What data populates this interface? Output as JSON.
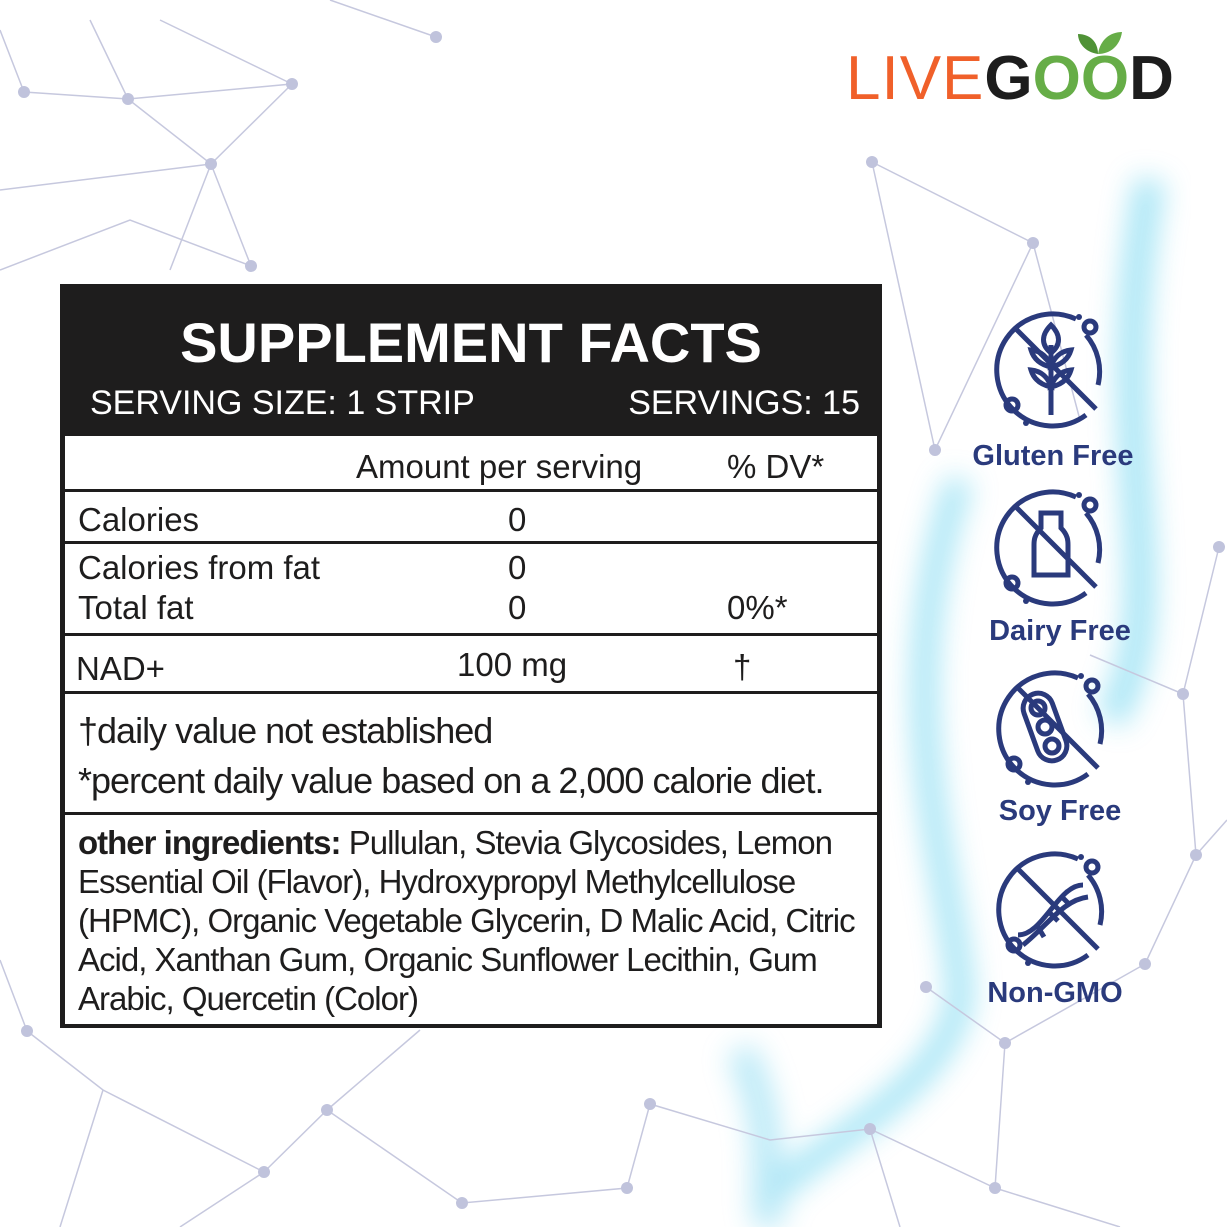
{
  "brand": {
    "logo_text": "LIVEGOOD",
    "colors": {
      "orange": "#f0602a",
      "green": "#66ad47",
      "dark": "#1d1d1d"
    }
  },
  "facts": {
    "title": "SUPPLEMENT FACTS",
    "serving_size": "SERVING SIZE: 1 STRIP",
    "servings": "SERVINGS: 15",
    "header": {
      "amount": "Amount per serving",
      "dv": "% DV*"
    },
    "rows": [
      {
        "name": "Calories",
        "amount": "0",
        "dv": ""
      },
      {
        "name": "Calories from fat",
        "amount": "0",
        "dv": ""
      },
      {
        "name": "Total fat",
        "amount": "0",
        "dv": "0%*"
      },
      {
        "name": "NAD+",
        "amount": "100 mg",
        "dv": "†"
      }
    ],
    "notes": [
      "†daily value not established",
      "*percent daily value based on a 2,000 calorie diet."
    ],
    "ingredients_label": "other ingredients:",
    "ingredients": "Pullulan, Stevia Glycosides, Lemon Essential Oil (Flavor), Hydroxypropyl Methylcellulose (HPMC), Organic Vegetable Glycerin, D Malic Acid, Citric Acid, Xanthan Gum, Organic Sunflower Lecithin, Gum Arabic, Quercetin (Color)"
  },
  "badges": [
    {
      "label": "Gluten Free",
      "icon": "no-wheat-icon"
    },
    {
      "label": "Dairy Free",
      "icon": "no-milk-icon"
    },
    {
      "label": "Soy Free",
      "icon": "no-soy-icon"
    },
    {
      "label": "Non-GMO",
      "icon": "no-dna-icon"
    }
  ],
  "badge_color": "#2a3a7c"
}
